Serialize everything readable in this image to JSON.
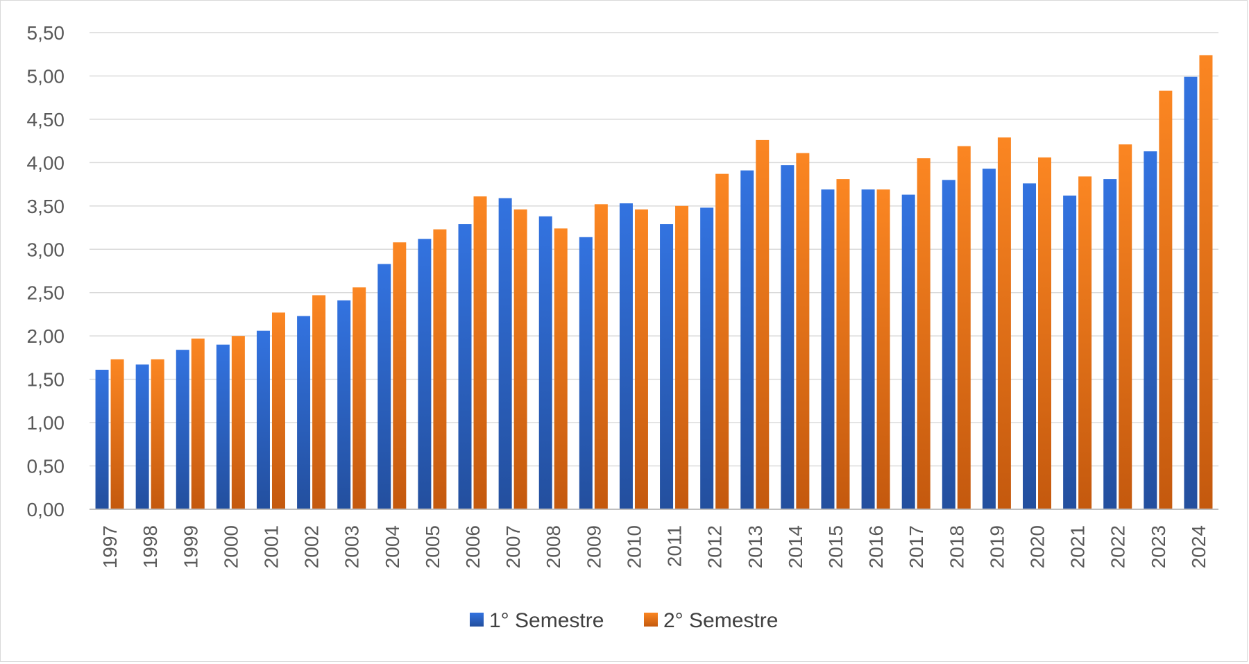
{
  "chart_data": {
    "type": "bar",
    "title": "",
    "xlabel": "",
    "ylabel": "",
    "ylim": [
      0,
      5.5
    ],
    "ytick_step": 0.5,
    "ytick_labels": [
      "0,00",
      "0,50",
      "1,00",
      "1,50",
      "2,00",
      "2,50",
      "3,00",
      "3,50",
      "4,00",
      "4,50",
      "5,00",
      "5,50"
    ],
    "grid": true,
    "legend_position": "bottom",
    "categories": [
      "1997",
      "1998",
      "1999",
      "2000",
      "2001",
      "2002",
      "2003",
      "2004",
      "2005",
      "2006",
      "2007",
      "2008",
      "2009",
      "2010",
      "2011",
      "2012",
      "2013",
      "2014",
      "2015",
      "2016",
      "2017",
      "2018",
      "2019",
      "2020",
      "2021",
      "2022",
      "2023",
      "2024"
    ],
    "series": [
      {
        "name": "1° Semestre",
        "color": "#2e6bd8",
        "values": [
          1.61,
          1.67,
          1.84,
          1.9,
          2.06,
          2.23,
          2.41,
          2.83,
          3.12,
          3.29,
          3.59,
          3.38,
          3.14,
          3.53,
          3.29,
          3.48,
          3.91,
          3.97,
          3.69,
          3.69,
          3.63,
          3.8,
          3.93,
          3.76,
          3.62,
          3.81,
          4.13,
          4.99
        ]
      },
      {
        "name": "2° Semestre",
        "color": "#f5831f",
        "values": [
          1.73,
          1.73,
          1.97,
          2.0,
          2.27,
          2.47,
          2.56,
          3.08,
          3.23,
          3.61,
          3.46,
          3.24,
          3.52,
          3.46,
          3.5,
          3.87,
          4.26,
          4.11,
          3.81,
          3.69,
          4.05,
          4.19,
          4.29,
          4.06,
          3.84,
          4.21,
          4.83,
          5.24
        ]
      }
    ]
  }
}
